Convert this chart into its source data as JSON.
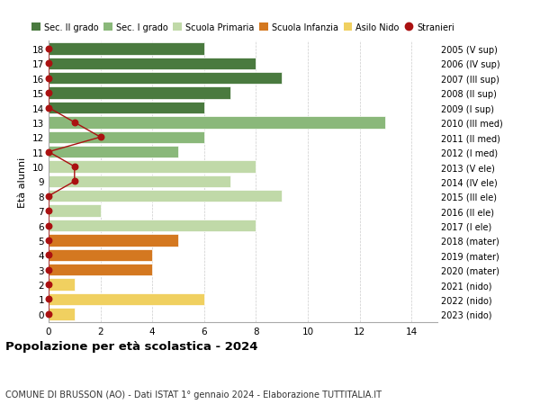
{
  "ages": [
    18,
    17,
    16,
    15,
    14,
    13,
    12,
    11,
    10,
    9,
    8,
    7,
    6,
    5,
    4,
    3,
    2,
    1,
    0
  ],
  "right_labels": [
    "2005 (V sup)",
    "2006 (IV sup)",
    "2007 (III sup)",
    "2008 (II sup)",
    "2009 (I sup)",
    "2010 (III med)",
    "2011 (II med)",
    "2012 (I med)",
    "2013 (V ele)",
    "2014 (IV ele)",
    "2015 (III ele)",
    "2016 (II ele)",
    "2017 (I ele)",
    "2018 (mater)",
    "2019 (mater)",
    "2020 (mater)",
    "2021 (nido)",
    "2022 (nido)",
    "2023 (nido)"
  ],
  "bar_values": [
    6,
    8,
    9,
    7,
    6,
    13,
    6,
    5,
    8,
    7,
    9,
    2,
    8,
    5,
    4,
    4,
    1,
    6,
    1
  ],
  "bar_colors": [
    "#4a7a3f",
    "#4a7a3f",
    "#4a7a3f",
    "#4a7a3f",
    "#4a7a3f",
    "#8ab87a",
    "#8ab87a",
    "#8ab87a",
    "#c0d9a8",
    "#c0d9a8",
    "#c0d9a8",
    "#c0d9a8",
    "#c0d9a8",
    "#d47820",
    "#d47820",
    "#d47820",
    "#f0d060",
    "#f0d060",
    "#f0d060"
  ],
  "stranieri_x": [
    0,
    0,
    0,
    0,
    0,
    1,
    2,
    0,
    1,
    1,
    0,
    0,
    0,
    0,
    0,
    0,
    0,
    0,
    0
  ],
  "colors": {
    "sec2": "#4a7a3f",
    "sec1": "#8ab87a",
    "primaria": "#c0d9a8",
    "infanzia": "#d47820",
    "nido": "#f0d060",
    "stranieri": "#aa1111"
  },
  "legend_labels": [
    "Sec. II grado",
    "Sec. I grado",
    "Scuola Primaria",
    "Scuola Infanzia",
    "Asilo Nido",
    "Stranieri"
  ],
  "xlabel_vals": [
    0,
    2,
    4,
    6,
    8,
    10,
    12,
    14
  ],
  "xlim": [
    0,
    15
  ],
  "title": "Popolazione per età scolastica - 2024",
  "subtitle": "COMUNE DI BRUSSON (AO) - Dati ISTAT 1° gennaio 2024 - Elaborazione TUTTITALIA.IT",
  "ylabel": "Età alunni",
  "background_color": "#ffffff",
  "grid_color": "#cccccc"
}
